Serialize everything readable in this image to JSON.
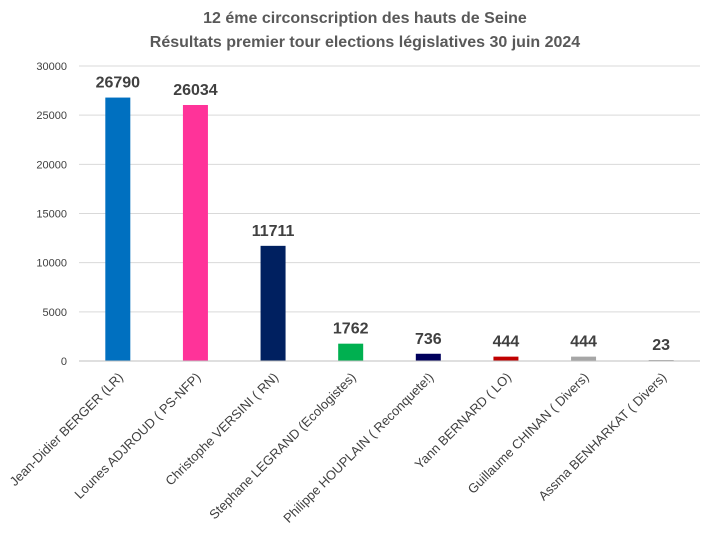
{
  "chart_data": {
    "type": "bar",
    "title": "12 éme circonscription des hauts de Seine",
    "subtitle": "Résultats premier tour elections législatives 30 juin 2024",
    "categories": [
      "Jean-Didier BERGER (LR)",
      "Lounes ADJROUD ( PS-NFP)",
      "Christophe VERSINI ( RN)",
      "Stephane LEGRAND (Ecologistes)",
      "Philippe HOUPLAIN ( Reconquete!)",
      "Yann BERNARD ( LO)",
      "Guillaume CHINAN ( Divers)",
      "Assma BENHARKAT ( Divers)"
    ],
    "values": [
      26790,
      26034,
      11711,
      1762,
      736,
      444,
      444,
      23
    ],
    "value_labels": [
      "26790",
      "26034",
      "11711",
      "1762",
      "736",
      "444",
      "444",
      "23"
    ],
    "colors": [
      "#0070c0",
      "#ff3399",
      "#002060",
      "#00b050",
      "#00005c",
      "#c00000",
      "#a6a6a6",
      "#a6a6a6"
    ],
    "ylim": [
      0,
      30000
    ],
    "yticks": [
      "0",
      "5000",
      "10000",
      "15000",
      "20000",
      "25000",
      "30000"
    ],
    "grid": true,
    "legend": "none"
  }
}
